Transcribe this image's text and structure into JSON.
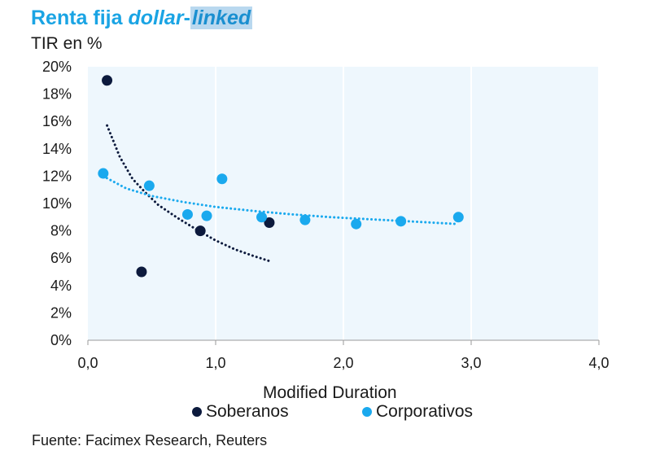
{
  "title": {
    "part1": "Renta fija ",
    "part2": "dollar",
    "part3": "-",
    "part4": "linked"
  },
  "source": "Fuente: Facimex Research, Reuters",
  "chart_data": {
    "type": "scatter",
    "title": "Renta fija dollar-linked",
    "ylabel": "TIR en %",
    "xlabel": "Modified Duration",
    "xlim": [
      0,
      4
    ],
    "ylim": [
      0,
      20
    ],
    "xticks": [
      0,
      1,
      2,
      3,
      4
    ],
    "xtick_labels": [
      "0,0",
      "1,0",
      "2,0",
      "3,0",
      "4,0"
    ],
    "yticks": [
      0,
      2,
      4,
      6,
      8,
      10,
      12,
      14,
      16,
      18,
      20
    ],
    "ytick_labels": [
      "0%",
      "2%",
      "4%",
      "6%",
      "8%",
      "10%",
      "12%",
      "14%",
      "16%",
      "18%",
      "20%"
    ],
    "plot_background": "#eef7fd",
    "legend_position": "bottom",
    "series": [
      {
        "name": "Soberanos",
        "color": "#0c1a3d",
        "x": [
          0.15,
          0.42,
          0.88,
          1.42
        ],
        "y": [
          19.0,
          5.0,
          8.0,
          8.6
        ],
        "trendline": {
          "style": "dotted",
          "x": [
            0.15,
            0.25,
            0.35,
            0.45,
            0.55,
            0.7,
            0.85,
            1.0,
            1.15,
            1.3,
            1.42
          ],
          "y": [
            15.7,
            13.4,
            11.8,
            10.8,
            9.9,
            8.95,
            8.1,
            7.3,
            6.65,
            6.15,
            5.8
          ]
        }
      },
      {
        "name": "Corporativos",
        "color": "#1aa9ee",
        "x": [
          0.12,
          0.48,
          0.78,
          0.93,
          1.05,
          1.36,
          1.7,
          2.1,
          2.45,
          2.9
        ],
        "y": [
          12.2,
          11.3,
          9.2,
          9.1,
          11.8,
          9.0,
          8.8,
          8.5,
          8.7,
          9.0
        ],
        "trendline": {
          "style": "dotted",
          "x": [
            0.12,
            0.3,
            0.5,
            0.75,
            1.0,
            1.3,
            1.6,
            1.9,
            2.2,
            2.5,
            2.8,
            2.9
          ],
          "y": [
            12.0,
            11.1,
            10.55,
            10.1,
            9.75,
            9.45,
            9.2,
            9.0,
            8.85,
            8.7,
            8.55,
            8.5
          ]
        }
      }
    ]
  }
}
